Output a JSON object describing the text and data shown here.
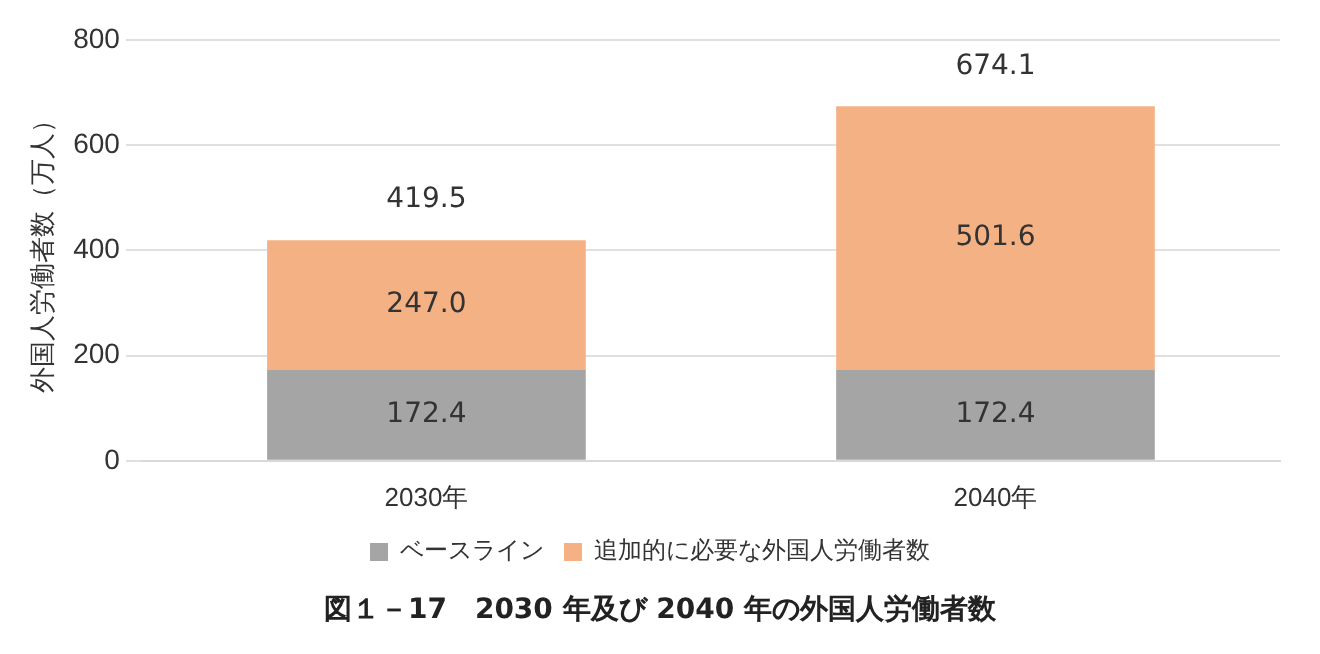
{
  "chart_data": {
    "type": "bar",
    "title": "図１－17　2030 年及び 2040 年の外国人労働者数",
    "ylabel": "外国人労働者数（万人）",
    "categories": [
      "2030年",
      "2040年"
    ],
    "series": [
      {
        "name": "ベースライン",
        "color": "#a5a5a5",
        "values": [
          172.4,
          172.4
        ],
        "value_labels": [
          "172.4",
          "172.4"
        ]
      },
      {
        "name": "追加的に必要な外国人労働者数",
        "color": "#f4b183",
        "values": [
          247.0,
          501.6
        ],
        "value_labels": [
          "247.0",
          "501.6"
        ]
      }
    ],
    "stacked": true,
    "totals": [
      "419.5",
      "674.1"
    ],
    "ylim": [
      0,
      800
    ],
    "yticks": [
      0,
      200,
      400,
      600,
      800
    ],
    "grid": "y",
    "legend": "bottom"
  }
}
